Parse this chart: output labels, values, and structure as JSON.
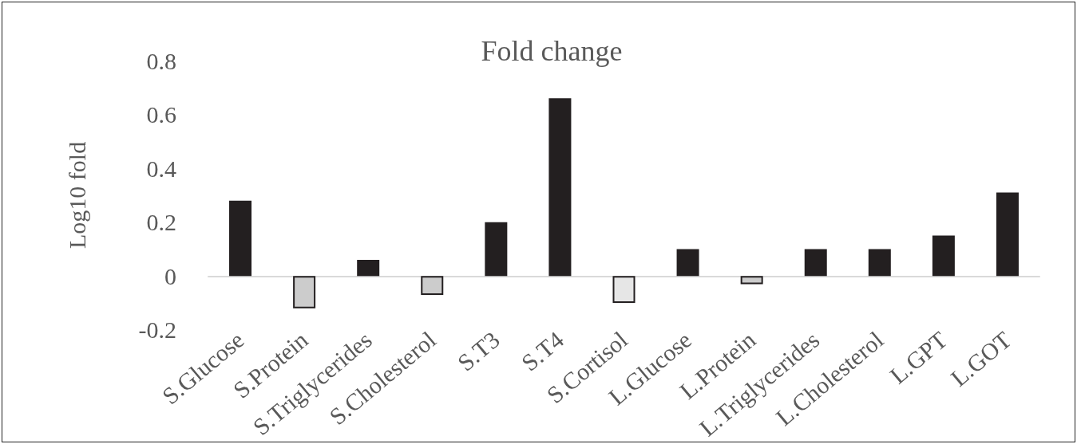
{
  "chart_data": {
    "type": "bar",
    "title": "Fold change",
    "ylabel": "Log10 fold",
    "categories": [
      "S.Glucose",
      "S.Protein",
      "S.Triglycerides",
      "S.Cholesterol",
      "S.T3",
      "S.T4",
      "S.Cortisol",
      "L.Glucose",
      "L.Protein",
      "L.Triglycerides",
      "L.Cholesterol",
      "L.GPT",
      "L.GOT"
    ],
    "values": [
      0.28,
      -0.12,
      0.06,
      -0.07,
      0.2,
      0.66,
      -0.1,
      0.1,
      -0.03,
      0.1,
      0.1,
      0.15,
      0.31
    ],
    "colors": [
      "#231f20",
      "#cccccc",
      "#231f20",
      "#cccccc",
      "#231f20",
      "#231f20",
      "#e6e6e6",
      "#231f20",
      "#cccccc",
      "#231f20",
      "#231f20",
      "#231f20",
      "#231f20"
    ],
    "ylim": [
      -0.2,
      0.8
    ],
    "yticks": [
      -0.2,
      0,
      0.2,
      0.4,
      0.6,
      0.8
    ],
    "grid": false
  }
}
